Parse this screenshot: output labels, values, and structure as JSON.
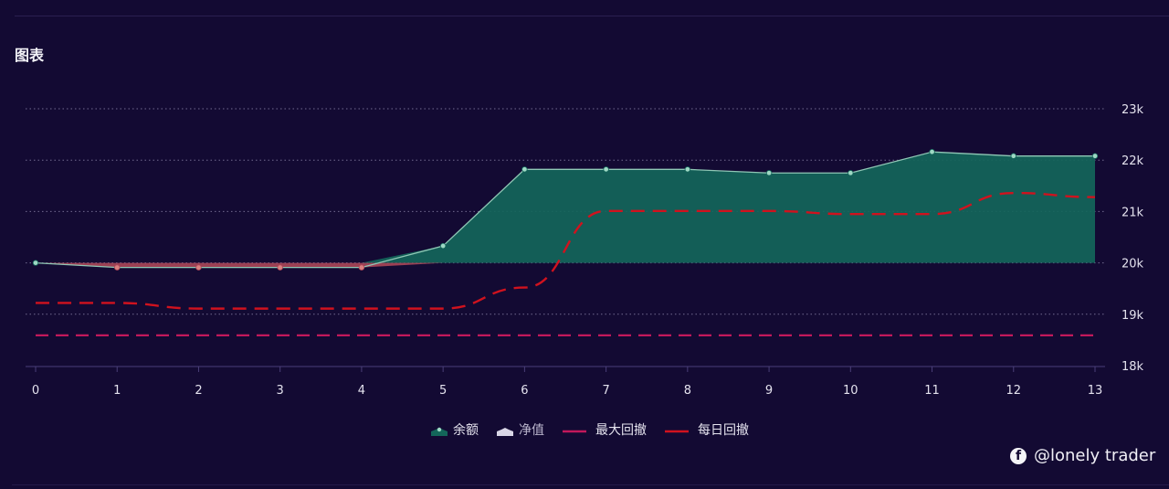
{
  "header": {
    "title": "图表"
  },
  "credit": {
    "icon": "facebook-icon",
    "handle": "@lonely trader"
  },
  "legend": [
    {
      "label": "余额",
      "color": "#13665a",
      "kind": "area"
    },
    {
      "label": "净值",
      "color": "#d9d6e6",
      "kind": "area"
    },
    {
      "label": "最大回撤",
      "color": "#c2185b",
      "kind": "dashed-line"
    },
    {
      "label": "每日回撤",
      "color": "#d0121e",
      "kind": "dashed-line"
    }
  ],
  "colors": {
    "background": "#130a33",
    "balance_fill": "#13665a",
    "balance_line": "#8fc7b5",
    "loss_fill": "#b44a5a",
    "max_drawdown": "#c2185b",
    "daily_drawdown": "#d0121e",
    "grid": "#8a84a8"
  },
  "chart_data": {
    "type": "line",
    "title": "图表",
    "xlabel": "",
    "ylabel": "",
    "x": [
      0,
      1,
      2,
      3,
      4,
      5,
      6,
      7,
      8,
      9,
      10,
      11,
      12,
      13
    ],
    "ylim": [
      18000,
      23000
    ],
    "yticks": [
      "18k",
      "19k",
      "20k",
      "21k",
      "22k",
      "23k"
    ],
    "y_axis_position": "right",
    "grid": true,
    "legend_position": "bottom",
    "baseline": 20000,
    "series": [
      {
        "name": "余额",
        "type": "area",
        "values": [
          20000,
          19910,
          19910,
          19910,
          19910,
          20330,
          21820,
          21820,
          21820,
          21750,
          21750,
          22160,
          22080,
          22080
        ]
      },
      {
        "name": "净值",
        "type": "area",
        "values": []
      },
      {
        "name": "最大回撤",
        "type": "line",
        "style": "dashed",
        "values": [
          18590,
          18590,
          18590,
          18590,
          18590,
          18590,
          18590,
          18590,
          18590,
          18590,
          18590,
          18590,
          18590,
          18590
        ]
      },
      {
        "name": "每日回撤",
        "type": "line",
        "style": "dashed",
        "values": [
          19220,
          19220,
          19110,
          19110,
          19110,
          19110,
          19520,
          21010,
          21010,
          21010,
          20950,
          20950,
          21360,
          21280
        ]
      }
    ]
  }
}
